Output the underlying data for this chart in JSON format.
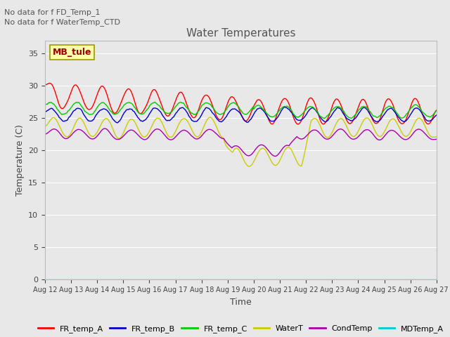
{
  "title": "Water Temperatures",
  "xlabel": "Time",
  "ylabel": "Temperature (C)",
  "annotations": [
    "No data for f FD_Temp_1",
    "No data for f WaterTemp_CTD"
  ],
  "text_box": "MB_tule",
  "ylim": [
    0,
    37
  ],
  "yticks": [
    0,
    5,
    10,
    15,
    20,
    25,
    30,
    35
  ],
  "date_labels": [
    "Aug 12",
    "Aug 13",
    "Aug 14",
    "Aug 15",
    "Aug 16",
    "Aug 17",
    "Aug 18",
    "Aug 19",
    "Aug 20",
    "Aug 21",
    "Aug 22",
    "Aug 23",
    "Aug 24",
    "Aug 25",
    "Aug 26",
    "Aug 27"
  ],
  "legend_entries": [
    "FR_temp_A",
    "FR_temp_B",
    "FR_temp_C",
    "WaterT",
    "CondTemp",
    "MDTemp_A"
  ],
  "legend_colors": [
    "#ff0000",
    "#0000cc",
    "#00cc00",
    "#cccc00",
    "#aa00aa",
    "#00cccc"
  ],
  "background_color": "#e8e8e8",
  "plot_bg_color": "#e8e8e8",
  "grid_color": "#ffffff",
  "n_days": 15,
  "n_pts": 500
}
